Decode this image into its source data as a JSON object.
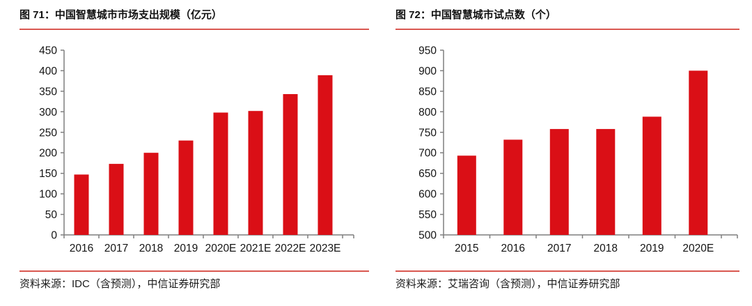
{
  "colors": {
    "bar": "#da0f16",
    "rule": "#d95750",
    "axis": "#7f7f7f",
    "tick_label": "#141414"
  },
  "panels": [
    {
      "title": "图 71：中国智慧城市市场支出规模（亿元）",
      "source": "资料来源：IDC（含预测），中信证券研究部"
    },
    {
      "title": "图 72：中国智慧城市试点数（个）",
      "source": "资料来源：艾瑞咨询（含预测），中信证券研究部"
    }
  ],
  "chart_data": [
    {
      "type": "bar",
      "title": "图 71：中国智慧城市市场支出规模（亿元）",
      "categories": [
        "2016",
        "2017",
        "2018",
        "2019",
        "2020E",
        "2021E",
        "2022E",
        "2023E"
      ],
      "values": [
        147,
        173,
        200,
        230,
        298,
        302,
        343,
        389
      ],
      "xlabel": "",
      "ylabel": "",
      "ylim": [
        0,
        450
      ],
      "ytick_step": 50,
      "grid": false,
      "legend": "none",
      "bar_color": "#da0f16",
      "source": "资料来源：IDC（含预测），中信证券研究部"
    },
    {
      "type": "bar",
      "title": "图 72：中国智慧城市试点数（个）",
      "categories": [
        "2015",
        "2016",
        "2017",
        "2018",
        "2019",
        "2020E"
      ],
      "values": [
        693,
        732,
        758,
        758,
        788,
        900
      ],
      "xlabel": "",
      "ylabel": "",
      "ylim": [
        500,
        950
      ],
      "ytick_step": 50,
      "grid": false,
      "legend": "none",
      "bar_color": "#da0f16",
      "source": "资料来源：艾瑞咨询（含预测），中信证券研究部"
    }
  ]
}
